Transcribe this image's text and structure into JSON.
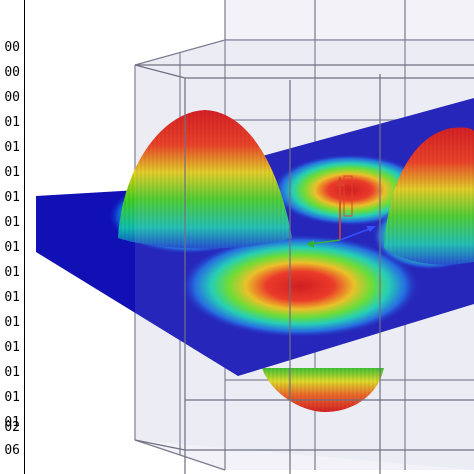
{
  "legend": {
    "labels": [
      "00",
      "00",
      "00",
      "01",
      "01",
      "01",
      "01",
      "01",
      "01",
      "01",
      "01",
      "01",
      "01",
      "01",
      "01",
      "01",
      "02",
      "06"
    ]
  },
  "colors": {
    "background": "#ffffff",
    "plane": "#1010b4",
    "grid_lines": "#7a7a8c",
    "box_face": "rgba(170,170,205,0.25)",
    "peak": "#e01010",
    "mid": "#f0e010",
    "low": "#10d020",
    "rim": "#10b0e0",
    "axis_z": "#e03010",
    "axis_x": "#20b020",
    "axis_y": "#2040ff"
  },
  "icons": [
    "axis-triad-icon"
  ]
}
